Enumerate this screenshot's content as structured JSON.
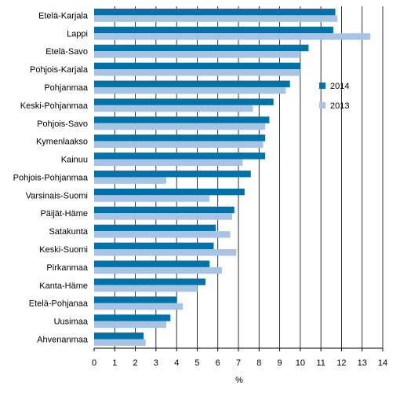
{
  "chart_data": {
    "type": "bar",
    "orientation": "horizontal",
    "categories": [
      "Etelä-Karjala",
      "Lappi",
      "Etelä-Savo",
      "Pohjois-Karjala",
      "Pohjanmaa",
      "Keski-Pohjanmaa",
      "Pohjois-Savo",
      "Kymenlaakso",
      "Kainuu",
      "Pohjois-Pohjanmaa",
      "Varsinais-Suomi",
      "Päijät-Häme",
      "Satakunta",
      "Keski-Suomi",
      "Pirkanmaa",
      "Kanta-Häme",
      "Etelä-Pohjanaa",
      "Uusimaa",
      "Ahvenanmaa"
    ],
    "series": [
      {
        "name": "2014",
        "color": "#0072a8",
        "values": [
          11.7,
          11.6,
          10.4,
          10.0,
          9.5,
          8.7,
          8.5,
          8.3,
          8.3,
          7.6,
          7.3,
          6.8,
          5.9,
          5.8,
          5.6,
          5.4,
          4.0,
          3.7,
          2.4
        ]
      },
      {
        "name": "2013",
        "color": "#a9c4e3",
        "values": [
          11.8,
          13.4,
          10.0,
          10.0,
          9.3,
          7.7,
          8.3,
          8.2,
          7.2,
          3.5,
          5.6,
          6.7,
          6.6,
          6.9,
          6.2,
          5.0,
          4.3,
          3.5,
          2.5
        ]
      }
    ],
    "xlim": [
      0,
      14
    ],
    "xticks": [
      "0",
      "1",
      "2",
      "3",
      "4",
      "5",
      "6",
      "7",
      "8",
      "9",
      "10",
      "11",
      "12",
      "13",
      "14"
    ],
    "xlabel": "%",
    "ylabel": "",
    "title": "",
    "grid": "vertical",
    "legend": "right"
  }
}
